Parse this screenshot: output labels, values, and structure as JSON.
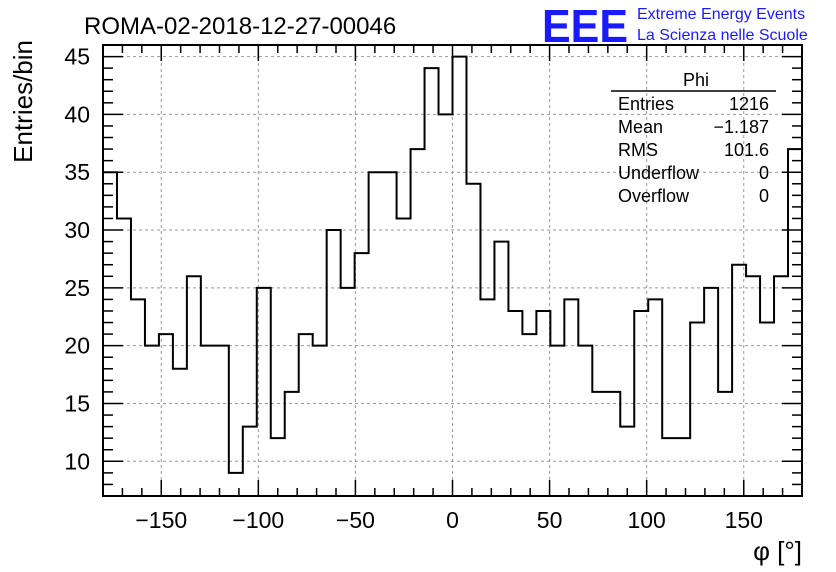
{
  "chart_data": {
    "type": "bar",
    "title": "ROMA-02-2018-12-27-00046",
    "xlabel": "φ [°]",
    "ylabel": "Entries/bin",
    "xlim": [
      -180,
      180
    ],
    "ylim": [
      7,
      46
    ],
    "bin_width": 7.2,
    "grid": true,
    "x_ticks": [
      -150,
      -100,
      -50,
      0,
      50,
      100,
      150
    ],
    "x_tick_labels": [
      "−150",
      "−100",
      "−50",
      "0",
      "50",
      "100",
      "150"
    ],
    "y_ticks": [
      10,
      15,
      20,
      25,
      30,
      35,
      40,
      45
    ],
    "y_tick_labels": [
      "10",
      "15",
      "20",
      "25",
      "30",
      "35",
      "40",
      "45"
    ],
    "values": [
      35,
      31,
      24,
      20,
      21,
      18,
      26,
      20,
      20,
      9,
      13,
      25,
      12,
      16,
      21,
      20,
      30,
      25,
      28,
      35,
      35,
      31,
      37,
      44,
      40,
      45,
      34,
      24,
      29,
      23,
      21,
      23,
      20,
      24,
      20,
      16,
      16,
      13,
      23,
      24,
      12,
      12,
      22,
      25,
      16,
      27,
      26,
      22,
      26,
      37
    ],
    "stats_box": {
      "title": "Phi",
      "position": "top-right",
      "rows": [
        {
          "label": "Entries",
          "value": "1216"
        },
        {
          "label": "Mean",
          "value": "−1.187"
        },
        {
          "label": "RMS",
          "value": "101.6"
        },
        {
          "label": "Underflow",
          "value": "0"
        },
        {
          "label": "Overflow",
          "value": "0"
        }
      ]
    }
  },
  "logo": {
    "mark": "EEE",
    "line1": "Extreme Energy Events",
    "line2": "La Scienza nelle Scuole",
    "color": "#1a1aff"
  }
}
